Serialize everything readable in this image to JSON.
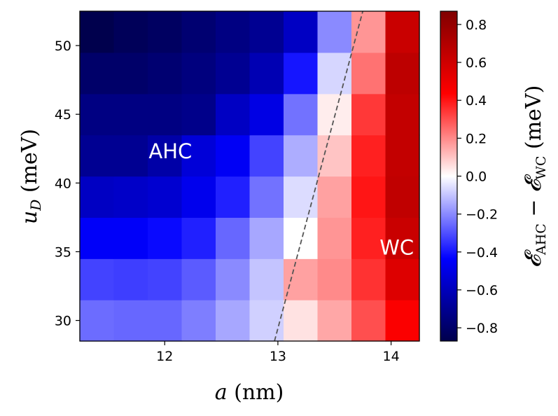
{
  "chart_data": {
    "type": "heatmap",
    "xlabel": "a (nm)",
    "ylabel": "u_D (meV)",
    "x_ticks": [
      12,
      13,
      14
    ],
    "y_ticks": [
      30,
      35,
      40,
      45,
      50
    ],
    "xlim": [
      11.25,
      14.25
    ],
    "ylim": [
      28.5,
      52.5
    ],
    "x_centers": [
      11.4,
      11.7,
      12.0,
      12.3,
      12.6,
      12.9,
      13.2,
      13.5,
      13.8,
      14.1
    ],
    "y_centers": [
      30,
      33,
      36,
      39,
      42,
      45,
      48,
      51
    ],
    "values": [
      [
        -0.25,
        -0.26,
        -0.26,
        -0.22,
        -0.15,
        -0.08,
        0.05,
        0.15,
        0.3,
        0.45
      ],
      [
        -0.32,
        -0.33,
        -0.32,
        -0.28,
        -0.2,
        -0.1,
        0.16,
        0.2,
        0.35,
        0.55
      ],
      [
        -0.45,
        -0.45,
        -0.42,
        -0.38,
        -0.26,
        -0.15,
        0.0,
        0.18,
        0.38,
        0.62
      ],
      [
        -0.58,
        -0.57,
        -0.55,
        -0.48,
        -0.38,
        -0.24,
        -0.06,
        0.16,
        0.4,
        0.65
      ],
      [
        -0.7,
        -0.7,
        -0.65,
        -0.53,
        -0.46,
        -0.32,
        -0.14,
        0.1,
        0.38,
        0.64
      ],
      [
        -0.74,
        -0.74,
        -0.74,
        -0.72,
        -0.58,
        -0.5,
        -0.24,
        0.03,
        0.34,
        0.64
      ],
      [
        -0.8,
        -0.8,
        -0.78,
        -0.75,
        -0.7,
        -0.62,
        -0.4,
        -0.07,
        0.24,
        0.66
      ],
      [
        -0.87,
        -0.84,
        -0.82,
        -0.78,
        -0.74,
        -0.7,
        -0.58,
        -0.2,
        0.18,
        0.62
      ]
    ],
    "colorbar": {
      "cmap": "seismic",
      "vmin": -0.87,
      "vmax": 0.87,
      "ticks": [
        -0.8,
        -0.6,
        -0.4,
        -0.2,
        0.0,
        0.2,
        0.4,
        0.6,
        0.8
      ],
      "tick_labels": [
        "−0.8",
        "−0.6",
        "−0.4",
        "−0.2",
        "0.0",
        "0.2",
        "0.4",
        "0.6",
        "0.8"
      ],
      "label": "𝓔AHC − 𝓔WC (meV)"
    },
    "boundary_line": {
      "style": "dashed",
      "color": "#555555",
      "points": [
        [
          12.97,
          28.5
        ],
        [
          13.75,
          52.5
        ]
      ]
    },
    "annotations": [
      {
        "text": "AHC",
        "x": 12.05,
        "y": 42.3
      },
      {
        "text": "WC",
        "x": 14.05,
        "y": 35.3
      }
    ]
  }
}
